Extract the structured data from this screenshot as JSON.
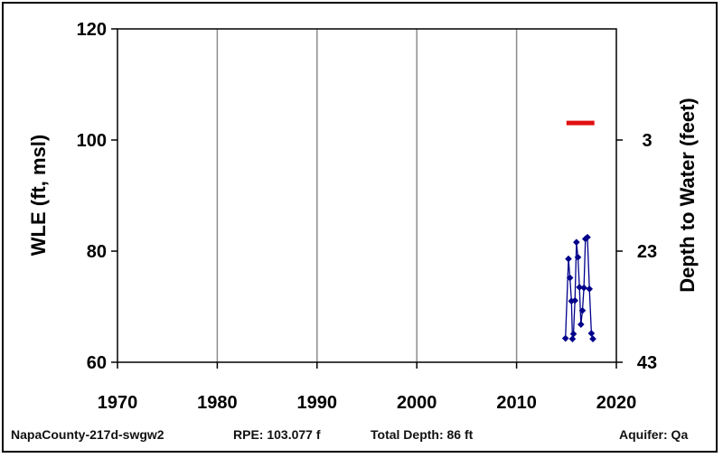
{
  "chart_data": {
    "type": "line",
    "title": "",
    "xlabel": "",
    "ylabel": "WLE (ft, msl)",
    "y2label": "Depth to Water (feet)",
    "xlim": [
      1970,
      2020
    ],
    "ylim": [
      60,
      120
    ],
    "x_ticks": [
      1970,
      1980,
      1990,
      2000,
      2010,
      2020
    ],
    "y_ticks": [
      60,
      80,
      100,
      120
    ],
    "y2_ticks": [
      {
        "wle": 100,
        "label": "3"
      },
      {
        "wle": 80,
        "label": "23"
      },
      {
        "wle": 60,
        "label": "43"
      }
    ],
    "grid": {
      "vertical": true,
      "horizontal": false
    },
    "series": [
      {
        "color": "#00008b",
        "marker": "diamond",
        "x": [
          2014.9,
          2015.2,
          2015.35,
          2015.5,
          2015.6,
          2015.7,
          2015.85,
          2016.0,
          2016.15,
          2016.3,
          2016.45,
          2016.6,
          2016.75,
          2016.9,
          2017.1,
          2017.3,
          2017.5,
          2017.65
        ],
        "y": [
          64.3,
          78.6,
          75.2,
          71.0,
          64.2,
          65.1,
          71.1,
          81.6,
          78.9,
          73.5,
          66.8,
          69.3,
          73.4,
          82.2,
          82.5,
          73.2,
          65.2,
          64.2
        ]
      }
    ],
    "reference_line": {
      "color": "#e01010",
      "x": [
        2015.0,
        2017.8
      ],
      "y": 103.077
    }
  },
  "footer": {
    "well_id": "NapaCounty-217d-swgw2",
    "rpe": "RPE: 103.077 f",
    "total_depth": "Total Depth: 86 ft",
    "aquifer": "Aquifer: Qa"
  }
}
